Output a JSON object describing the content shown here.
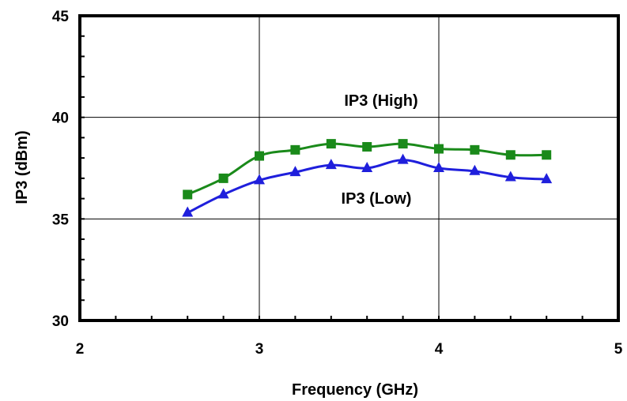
{
  "chart_data": {
    "type": "line",
    "title": "",
    "xlabel": "Frequency (GHz)",
    "ylabel": "IP3 (dBm)",
    "xlim": [
      2,
      5
    ],
    "ylim": [
      30,
      45
    ],
    "x_ticks": [
      "2",
      "3",
      "4",
      "5"
    ],
    "y_ticks": [
      "30",
      "35",
      "40",
      "45"
    ],
    "grid": true,
    "legend": "none",
    "x": [
      2.6,
      2.8,
      3.0,
      3.2,
      3.4,
      3.6,
      3.8,
      4.0,
      4.2,
      4.4,
      4.6
    ],
    "series": [
      {
        "name": "IP3 (High)",
        "color": "#1a8a1a",
        "marker": "square",
        "values": [
          36.2,
          37.0,
          38.1,
          38.4,
          38.7,
          38.55,
          38.7,
          38.45,
          38.4,
          38.15,
          38.15
        ]
      },
      {
        "name": "IP3 (Low)",
        "color": "#1f1fdc",
        "marker": "triangle",
        "values": [
          35.3,
          36.2,
          36.9,
          37.3,
          37.65,
          37.5,
          37.9,
          37.5,
          37.35,
          37.05,
          36.95
        ]
      }
    ],
    "annotations": [
      "IP3 (High)",
      "IP3 (Low)"
    ]
  }
}
